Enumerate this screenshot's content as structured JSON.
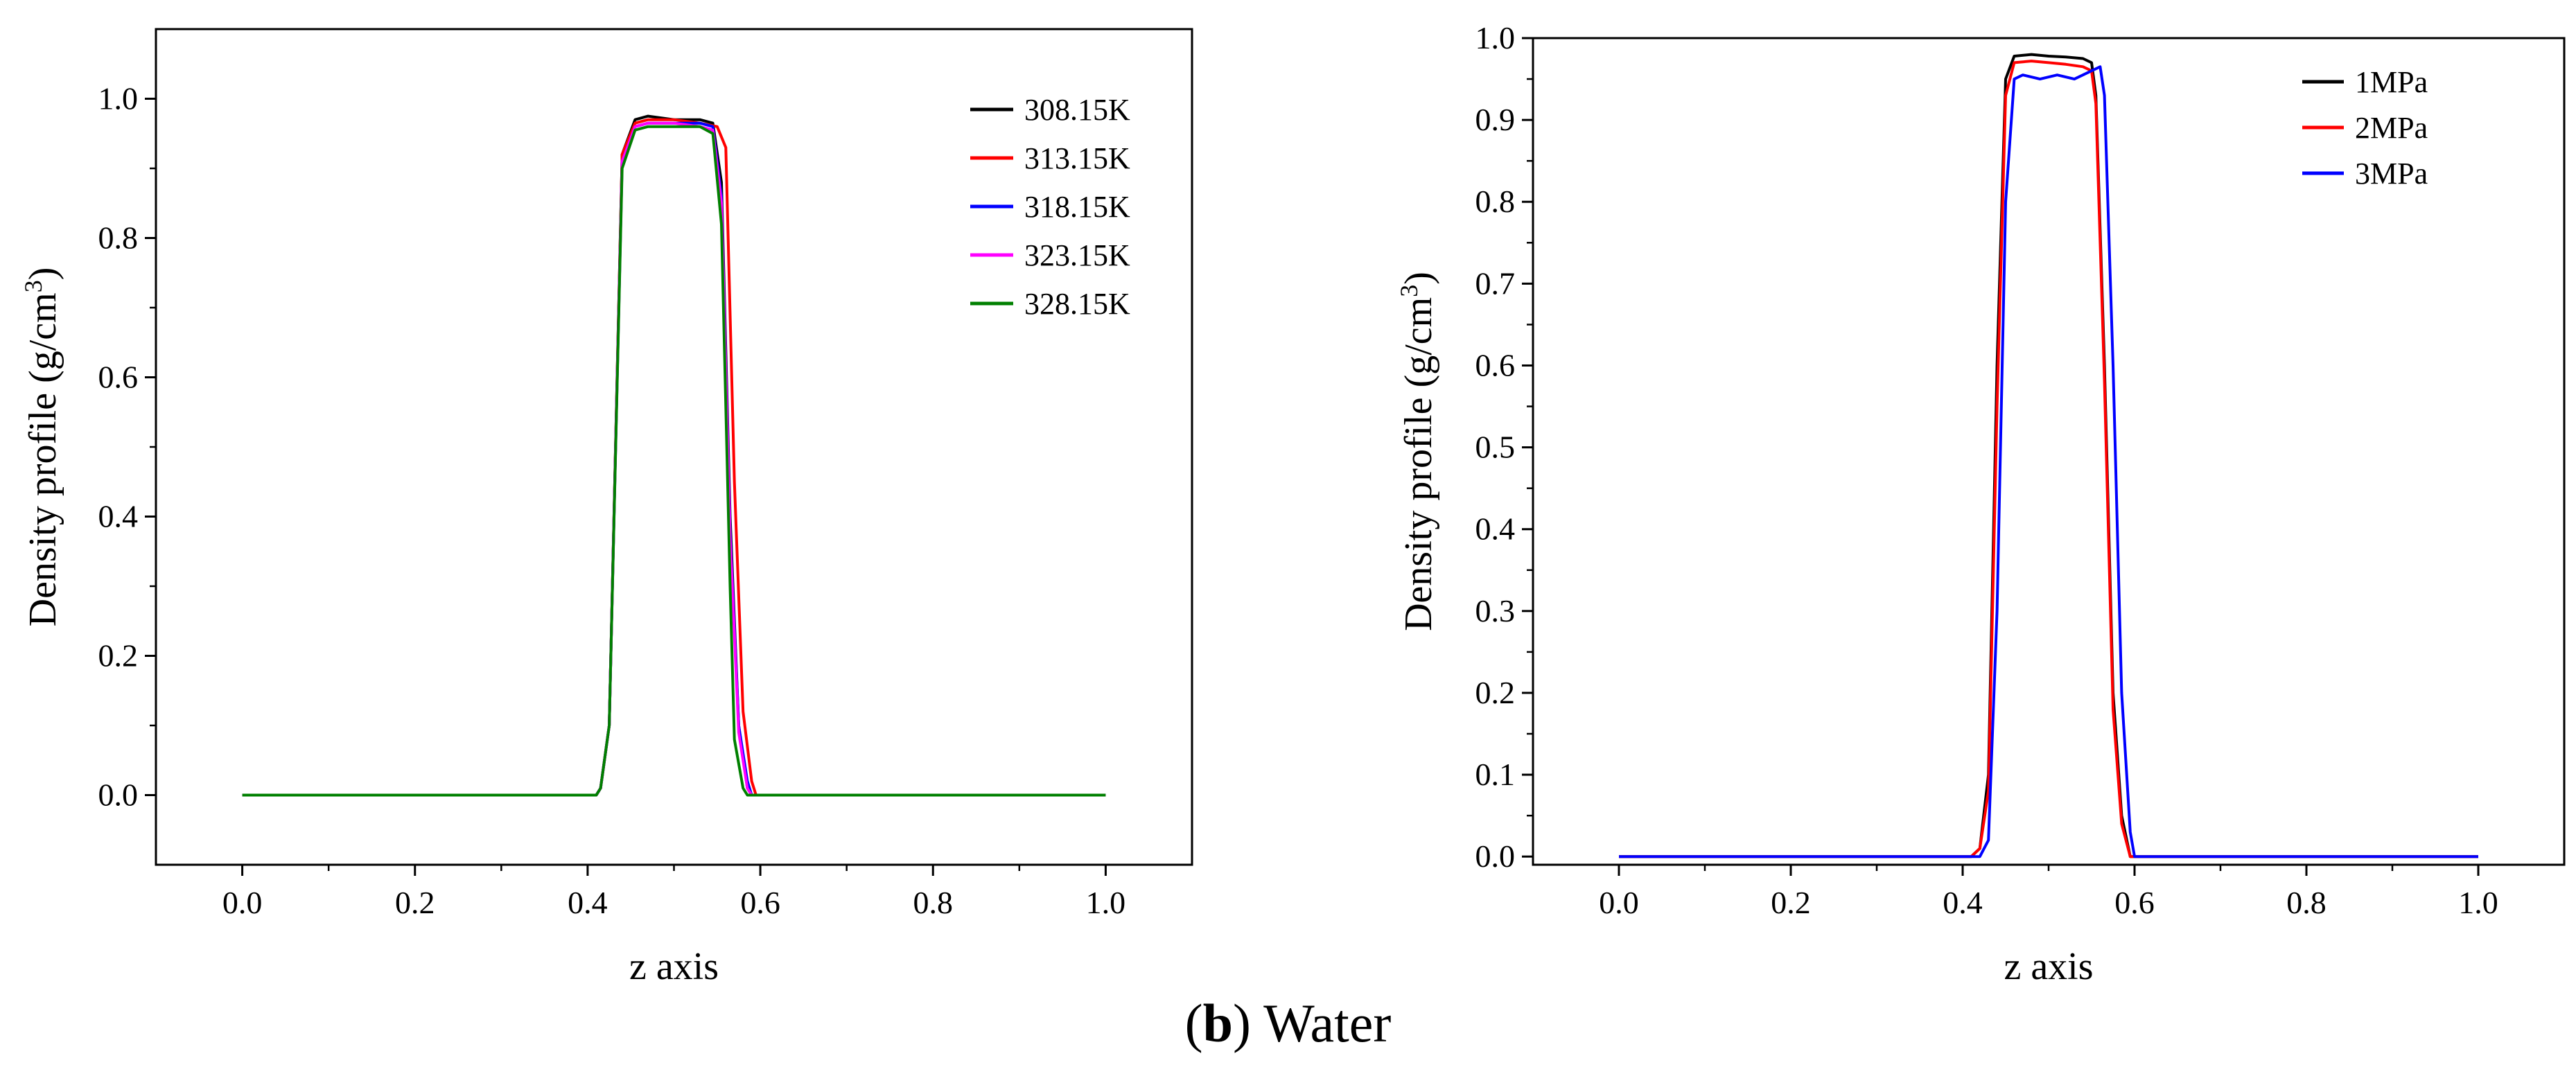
{
  "caption": {
    "open_paren": "(",
    "letter": "b",
    "close_paren": ")",
    "text": "Water"
  },
  "chart_data": [
    {
      "type": "line",
      "title": "",
      "xlabel": "z axis",
      "ylabel": "Density profile (g/cm",
      "ylabel_sup": "3",
      "ylabel_tail": ")",
      "xlim": [
        -0.1,
        1.1
      ],
      "ylim": [
        -0.1,
        1.1
      ],
      "xticks": [
        0.0,
        0.2,
        0.4,
        0.6,
        0.8,
        1.0
      ],
      "xtick_labels": [
        "0.0",
        "0.2",
        "0.4",
        "0.6",
        "0.8",
        "1.0"
      ],
      "yticks": [
        0.0,
        0.2,
        0.4,
        0.6,
        0.8,
        1.0
      ],
      "ytick_labels": [
        "0.0",
        "0.2",
        "0.4",
        "0.6",
        "0.8",
        "1.0"
      ],
      "legend_position": "top-right",
      "series": [
        {
          "name": "308.15K",
          "color": "#000000",
          "x": [
            0.0,
            0.41,
            0.415,
            0.425,
            0.44,
            0.455,
            0.47,
            0.5,
            0.53,
            0.545,
            0.555,
            0.565,
            0.575,
            0.585,
            0.59,
            1.0
          ],
          "y": [
            0.0,
            0.0,
            0.01,
            0.1,
            0.92,
            0.97,
            0.975,
            0.97,
            0.97,
            0.965,
            0.88,
            0.4,
            0.1,
            0.01,
            0.0,
            0.0
          ]
        },
        {
          "name": "313.15K",
          "color": "#ff0000",
          "x": [
            0.0,
            0.41,
            0.415,
            0.425,
            0.44,
            0.455,
            0.47,
            0.5,
            0.53,
            0.55,
            0.56,
            0.57,
            0.58,
            0.59,
            0.595,
            1.0
          ],
          "y": [
            0.0,
            0.0,
            0.01,
            0.1,
            0.92,
            0.965,
            0.97,
            0.97,
            0.965,
            0.96,
            0.93,
            0.45,
            0.12,
            0.02,
            0.0,
            0.0
          ]
        },
        {
          "name": "318.15K",
          "color": "#0000ff",
          "x": [
            0.0,
            0.41,
            0.415,
            0.425,
            0.44,
            0.455,
            0.47,
            0.5,
            0.53,
            0.545,
            0.555,
            0.565,
            0.575,
            0.585,
            0.59,
            1.0
          ],
          "y": [
            0.0,
            0.0,
            0.01,
            0.1,
            0.91,
            0.96,
            0.965,
            0.965,
            0.965,
            0.96,
            0.86,
            0.38,
            0.1,
            0.02,
            0.0,
            0.0
          ]
        },
        {
          "name": "323.15K",
          "color": "#ff00ff",
          "x": [
            0.0,
            0.41,
            0.415,
            0.425,
            0.44,
            0.455,
            0.47,
            0.5,
            0.53,
            0.545,
            0.555,
            0.565,
            0.575,
            0.585,
            0.59,
            1.0
          ],
          "y": [
            0.0,
            0.0,
            0.01,
            0.1,
            0.91,
            0.96,
            0.965,
            0.965,
            0.96,
            0.955,
            0.85,
            0.37,
            0.09,
            0.01,
            0.0,
            0.0
          ]
        },
        {
          "name": "328.15K",
          "color": "#008000",
          "x": [
            0.0,
            0.41,
            0.415,
            0.425,
            0.44,
            0.455,
            0.47,
            0.5,
            0.53,
            0.545,
            0.555,
            0.565,
            0.57,
            0.58,
            0.585,
            1.0
          ],
          "y": [
            0.0,
            0.0,
            0.01,
            0.1,
            0.9,
            0.955,
            0.96,
            0.96,
            0.96,
            0.95,
            0.82,
            0.3,
            0.08,
            0.01,
            0.0,
            0.0
          ]
        }
      ]
    },
    {
      "type": "line",
      "title": "",
      "xlabel": "z axis",
      "ylabel": "Density profile (g/cm",
      "ylabel_sup": "3",
      "ylabel_tail": ")",
      "xlim": [
        -0.1,
        1.1
      ],
      "ylim": [
        -0.01,
        1.0
      ],
      "xticks": [
        0.0,
        0.2,
        0.4,
        0.6,
        0.8,
        1.0
      ],
      "xtick_labels": [
        "0.0",
        "0.2",
        "0.4",
        "0.6",
        "0.8",
        "1.0"
      ],
      "yticks": [
        0.0,
        0.1,
        0.2,
        0.3,
        0.4,
        0.5,
        0.6,
        0.7,
        0.8,
        0.9,
        1.0
      ],
      "ytick_labels": [
        "0.0",
        "0.1",
        "0.2",
        "0.3",
        "0.4",
        "0.5",
        "0.6",
        "0.7",
        "0.8",
        "0.9",
        "1.0"
      ],
      "legend_position": "top-right",
      "series": [
        {
          "name": "1MPa",
          "color": "#000000",
          "x": [
            0.0,
            0.41,
            0.42,
            0.43,
            0.44,
            0.45,
            0.46,
            0.48,
            0.5,
            0.52,
            0.54,
            0.55,
            0.555,
            0.565,
            0.575,
            0.585,
            0.595,
            0.6,
            1.0
          ],
          "y": [
            0.0,
            0.0,
            0.01,
            0.1,
            0.6,
            0.95,
            0.978,
            0.98,
            0.978,
            0.977,
            0.975,
            0.97,
            0.93,
            0.6,
            0.2,
            0.05,
            0.0,
            0.0,
            0.0
          ]
        },
        {
          "name": "2MPa",
          "color": "#ff0000",
          "x": [
            0.0,
            0.41,
            0.42,
            0.43,
            0.44,
            0.45,
            0.46,
            0.48,
            0.5,
            0.52,
            0.54,
            0.55,
            0.555,
            0.565,
            0.575,
            0.585,
            0.595,
            0.6,
            1.0
          ],
          "y": [
            0.0,
            0.0,
            0.01,
            0.08,
            0.55,
            0.93,
            0.97,
            0.972,
            0.97,
            0.968,
            0.965,
            0.96,
            0.92,
            0.58,
            0.18,
            0.04,
            0.0,
            0.0,
            0.0
          ]
        },
        {
          "name": "3MPa",
          "color": "#0000ff",
          "x": [
            0.0,
            0.42,
            0.43,
            0.44,
            0.45,
            0.46,
            0.47,
            0.49,
            0.51,
            0.53,
            0.55,
            0.56,
            0.565,
            0.575,
            0.585,
            0.595,
            0.6,
            0.61,
            1.0
          ],
          "y": [
            0.0,
            0.0,
            0.02,
            0.3,
            0.8,
            0.95,
            0.955,
            0.95,
            0.955,
            0.95,
            0.96,
            0.965,
            0.93,
            0.6,
            0.2,
            0.03,
            0.0,
            0.0,
            0.0
          ]
        }
      ]
    }
  ]
}
